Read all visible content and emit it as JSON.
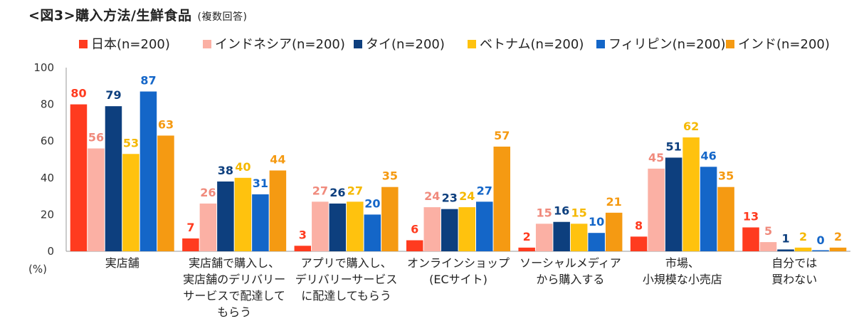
{
  "title": "<図3>購入方法/生鮮食品",
  "subtitle": "(複数回答)",
  "chart_data": {
    "type": "bar",
    "ylabel": "(%)",
    "ylim": [
      0,
      100
    ],
    "yticks": [
      0,
      20,
      40,
      60,
      80,
      100
    ],
    "grid": false,
    "legend_position": "top",
    "categories": [
      [
        "実店舗"
      ],
      [
        "実店舗で購入し、",
        "実店舗のデリバリー",
        "サービスで配達して",
        "もらう"
      ],
      [
        "アプリで購入し、",
        "デリバリーサービス",
        "に配達してもらう"
      ],
      [
        "オンラインショップ",
        "(ECサイト)"
      ],
      [
        "ソーシャルメディア",
        "から購入する"
      ],
      [
        "市場、",
        "小規模な小売店"
      ],
      [
        "自分では",
        "買わない"
      ]
    ],
    "series": [
      {
        "name": "日本(n=200)",
        "color": "#ff3b1f",
        "label_color": "#ff3b1f",
        "values": [
          80,
          7,
          3,
          6,
          2,
          8,
          13
        ]
      },
      {
        "name": "インドネシア(n=200)",
        "color": "#fbb0a4",
        "label_color": "#f08a7c",
        "values": [
          56,
          26,
          27,
          24,
          15,
          45,
          5
        ]
      },
      {
        "name": "タイ(n=200)",
        "color": "#0d3f7e",
        "label_color": "#0d3f7e",
        "values": [
          79,
          38,
          26,
          23,
          16,
          51,
          1
        ]
      },
      {
        "name": "ベトナム(n=200)",
        "color": "#ffc20e",
        "label_color": "#f5b800",
        "values": [
          53,
          40,
          27,
          24,
          15,
          62,
          2
        ]
      },
      {
        "name": "フィリピン(n=200)",
        "color": "#1466c8",
        "label_color": "#1466c8",
        "values": [
          87,
          31,
          20,
          27,
          10,
          46,
          0
        ]
      },
      {
        "name": "インド(n=200)",
        "color": "#f59a12",
        "label_color": "#f59a12",
        "values": [
          63,
          44,
          35,
          57,
          21,
          35,
          2
        ]
      }
    ]
  }
}
